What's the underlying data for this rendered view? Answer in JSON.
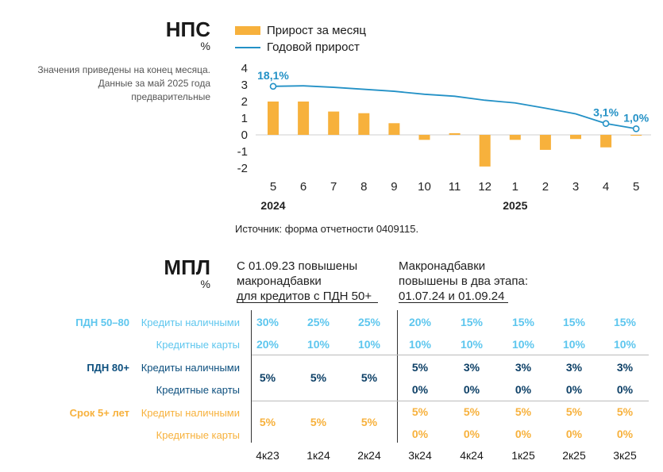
{
  "nps": {
    "title": "НПС",
    "unit": "%",
    "note_lines": [
      "Значения приведены на конец месяца.",
      "Данные за май 2025 года",
      "предварительные"
    ],
    "legend": {
      "bar": "Прирост за месяц",
      "line": "Годовой прирост"
    },
    "source": "Источник: форма отчетности 0409115.",
    "colors": {
      "bar": "#f7b13c",
      "line": "#2391c6"
    }
  },
  "chart_data": {
    "type": "bar",
    "title": "НПС",
    "ylabel": "%",
    "categories": [
      "5",
      "6",
      "7",
      "8",
      "9",
      "10",
      "11",
      "12",
      "1",
      "2",
      "3",
      "4",
      "5"
    ],
    "year_labels": [
      {
        "label": "2024",
        "at_index": 0
      },
      {
        "label": "2025",
        "at_index": 8
      }
    ],
    "ylim": [
      -2,
      4
    ],
    "yticks": [
      4,
      3,
      2,
      1,
      0,
      -1,
      -2
    ],
    "series": [
      {
        "name": "Прирост за месяц",
        "kind": "bar",
        "values": [
          2.0,
          2.0,
          1.4,
          1.3,
          0.7,
          -0.3,
          0.1,
          -1.9,
          -0.3,
          -0.9,
          -0.25,
          -0.75,
          -0.05
        ]
      },
      {
        "name": "Годовой прирост",
        "kind": "line",
        "axis": "secondary",
        "values": [
          18.1,
          18.3,
          17.7,
          16.9,
          16.1,
          14.9,
          14.1,
          12.5,
          11.4,
          9.3,
          7.0,
          3.1,
          1.0
        ],
        "ylim": [
          -14.9,
          25.4
        ]
      }
    ],
    "data_labels": [
      {
        "series": 1,
        "index": 0,
        "text": "18,1%"
      },
      {
        "series": 1,
        "index": 11,
        "text": "3,1%"
      },
      {
        "series": 1,
        "index": 12,
        "text": "1,0%"
      }
    ]
  },
  "mpl": {
    "title": "МПЛ",
    "unit": "%",
    "header1": [
      "С 01.09.23 повышены",
      "макронадбавки",
      "для кредитов с ПДН 50+"
    ],
    "header2": [
      "Макронадбавки",
      "повышены в два этапа:",
      "01.07.24 и 01.09.24"
    ],
    "quarters": [
      "4к23",
      "1к24",
      "2к24",
      "3к24",
      "4к24",
      "1к25",
      "2к25",
      "3к25"
    ],
    "groups": [
      {
        "label": "ПДН 50–80",
        "rows": [
          {
            "label": "Кредиты наличными",
            "values": [
              "30%",
              "25%",
              "25%",
              "20%",
              "15%",
              "15%",
              "15%",
              "15%"
            ]
          },
          {
            "label": "Кредитные карты",
            "values": [
              "20%",
              "10%",
              "10%",
              "10%",
              "10%",
              "10%",
              "10%",
              "10%"
            ]
          }
        ]
      },
      {
        "label": "ПДН 80+",
        "merged": [
          "5%",
          "5%",
          "5%"
        ],
        "rows": [
          {
            "label": "Кредиты наличными",
            "values": [
              "5%",
              "3%",
              "3%",
              "3%",
              "3%"
            ]
          },
          {
            "label": "Кредитные карты",
            "values": [
              "0%",
              "0%",
              "0%",
              "0%",
              "0%"
            ]
          }
        ]
      },
      {
        "label": "Срок 5+ лет",
        "merged": [
          "5%",
          "5%",
          "5%"
        ],
        "rows": [
          {
            "label": "Кредиты наличными",
            "values": [
              "5%",
              "5%",
              "5%",
              "5%",
              "5%"
            ]
          },
          {
            "label": "Кредитные карты",
            "values": [
              "0%",
              "0%",
              "0%",
              "0%",
              "0%"
            ]
          }
        ]
      }
    ]
  }
}
